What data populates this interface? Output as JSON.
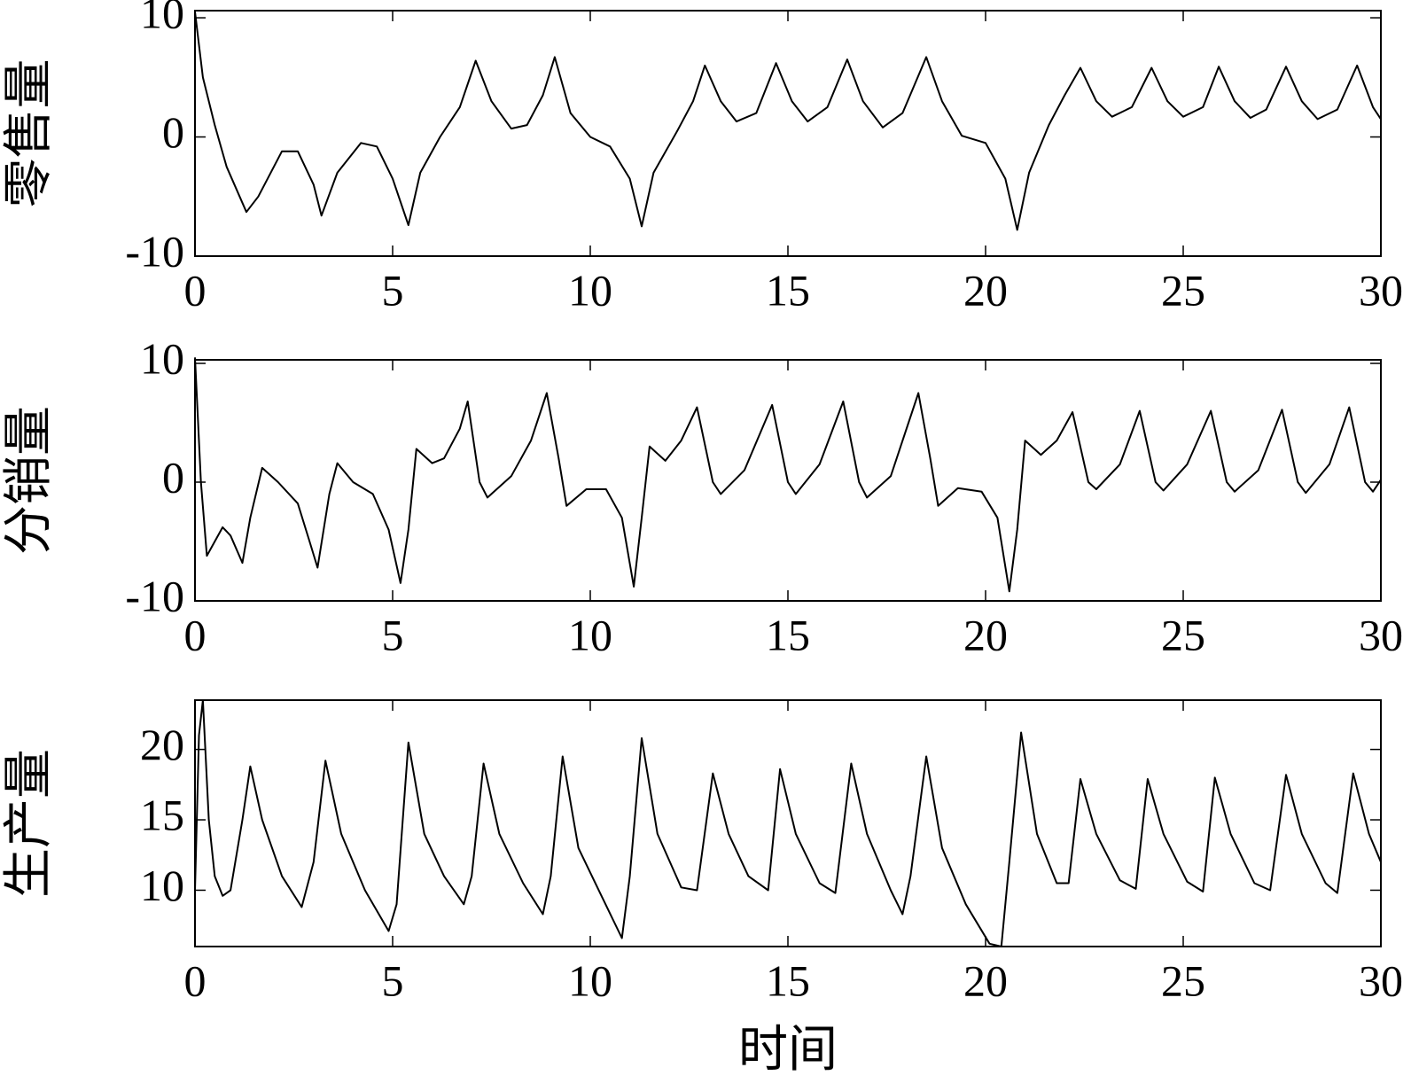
{
  "chart_data": [
    {
      "type": "line",
      "ylabel": "零售量",
      "color": "#000000",
      "xlim": [
        0,
        30
      ],
      "xticks": [
        0,
        5,
        10,
        15,
        20,
        25,
        30
      ],
      "ylim": [
        -10,
        10.6
      ],
      "yticks": [
        -10,
        0,
        10
      ],
      "x": [
        0,
        0.2,
        0.5,
        0.8,
        1.3,
        1.6,
        2.2,
        2.6,
        3.0,
        3.2,
        3.6,
        4.2,
        4.6,
        5.0,
        5.4,
        5.7,
        6.2,
        6.7,
        7.1,
        7.5,
        8.0,
        8.4,
        8.8,
        9.1,
        9.5,
        10.0,
        10.5,
        11.0,
        11.3,
        11.6,
        12.2,
        12.6,
        12.9,
        13.3,
        13.7,
        14.2,
        14.7,
        15.1,
        15.5,
        16.0,
        16.5,
        16.9,
        17.4,
        17.9,
        18.5,
        18.9,
        19.4,
        20.0,
        20.5,
        20.8,
        21.1,
        21.6,
        22.0,
        22.4,
        22.8,
        23.2,
        23.7,
        24.2,
        24.6,
        25.0,
        25.5,
        25.9,
        26.3,
        26.7,
        27.1,
        27.6,
        28.0,
        28.4,
        28.9,
        29.4,
        29.8,
        30
      ],
      "values": [
        10.5,
        5,
        1,
        -2.5,
        -6.3,
        -5,
        -1.2,
        -1.2,
        -4,
        -6.6,
        -3,
        -0.5,
        -0.8,
        -3.5,
        -7.4,
        -3,
        0,
        2.5,
        6.4,
        3,
        0.7,
        1,
        3.5,
        6.7,
        2,
        0,
        -0.8,
        -3.5,
        -7.5,
        -3,
        0.5,
        3,
        6,
        3,
        1.3,
        2,
        6.2,
        3,
        1.3,
        2.5,
        6.5,
        3,
        0.8,
        2,
        6.7,
        3,
        0.1,
        -0.5,
        -3.5,
        -7.8,
        -3,
        1,
        3.5,
        5.8,
        3,
        1.7,
        2.5,
        5.8,
        3,
        1.7,
        2.5,
        5.9,
        3,
        1.6,
        2.3,
        5.9,
        3,
        1.5,
        2.3,
        6,
        2.5,
        1.5
      ]
    },
    {
      "type": "line",
      "ylabel": "分销量",
      "color": "#000000",
      "xlim": [
        0,
        30
      ],
      "xticks": [
        0,
        5,
        10,
        15,
        20,
        25,
        30
      ],
      "ylim": [
        -10,
        10.3
      ],
      "yticks": [
        -10,
        0,
        10
      ],
      "x": [
        0,
        0.15,
        0.3,
        0.7,
        0.9,
        1.2,
        1.4,
        1.7,
        2.1,
        2.6,
        2.9,
        3.1,
        3.4,
        3.6,
        4.0,
        4.5,
        4.9,
        5.2,
        5.4,
        5.6,
        6.0,
        6.3,
        6.7,
        6.9,
        7.2,
        7.4,
        8.0,
        8.5,
        8.9,
        9.2,
        9.4,
        9.9,
        10.4,
        10.8,
        11.1,
        11.3,
        11.5,
        11.9,
        12.3,
        12.7,
        13.1,
        13.3,
        13.9,
        14.6,
        15.0,
        15.2,
        15.8,
        16.4,
        16.8,
        17.0,
        17.6,
        18.3,
        18.6,
        18.8,
        19.3,
        19.9,
        20.3,
        20.6,
        20.8,
        21.0,
        21.4,
        21.8,
        22.2,
        22.6,
        22.8,
        23.4,
        23.9,
        24.3,
        24.5,
        25.1,
        25.7,
        26.1,
        26.3,
        26.9,
        27.5,
        27.9,
        28.1,
        28.7,
        29.2,
        29.6,
        29.8,
        30
      ],
      "values": [
        10.5,
        0,
        -6.2,
        -3.8,
        -4.5,
        -6.8,
        -3,
        1.2,
        0,
        -1.8,
        -5,
        -7.2,
        -1,
        1.6,
        0,
        -1,
        -4,
        -8.5,
        -4,
        2.8,
        1.6,
        2,
        4.5,
        6.8,
        0,
        -1.3,
        0.5,
        3.5,
        7.5,
        2,
        -2,
        -0.6,
        -0.6,
        -3,
        -8.8,
        -3,
        3,
        1.8,
        3.5,
        6.3,
        0,
        -1,
        1,
        6.5,
        0,
        -1,
        1.5,
        6.8,
        0,
        -1.3,
        0.5,
        7.5,
        2,
        -2,
        -0.5,
        -0.8,
        -3,
        -9.2,
        -4,
        3.5,
        2.3,
        3.5,
        5.9,
        0,
        -0.6,
        1.5,
        6,
        0,
        -0.7,
        1.5,
        6,
        0,
        -0.8,
        1,
        6.1,
        0,
        -0.9,
        1.5,
        6.3,
        0,
        -0.8,
        0.2
      ]
    },
    {
      "type": "line",
      "ylabel": "生产量",
      "xlabel": "时间",
      "color": "#000000",
      "xlim": [
        0,
        30
      ],
      "xticks": [
        0,
        5,
        10,
        15,
        20,
        25,
        30
      ],
      "ylim": [
        6,
        23.5
      ],
      "yticks": [
        10,
        15,
        20
      ],
      "x": [
        0,
        0.1,
        0.2,
        0.35,
        0.5,
        0.7,
        0.9,
        1.2,
        1.4,
        1.7,
        2.2,
        2.7,
        3.0,
        3.3,
        3.7,
        4.3,
        4.9,
        5.1,
        5.4,
        5.8,
        6.3,
        6.8,
        7.0,
        7.3,
        7.7,
        8.3,
        8.8,
        9.0,
        9.3,
        9.7,
        10.3,
        10.8,
        11.0,
        11.3,
        11.7,
        12.3,
        12.7,
        13.1,
        13.5,
        14.0,
        14.5,
        14.8,
        15.2,
        15.8,
        16.2,
        16.6,
        17.0,
        17.6,
        17.9,
        18.1,
        18.5,
        18.9,
        19.5,
        20.1,
        20.4,
        20.6,
        20.9,
        21.3,
        21.8,
        22.1,
        22.4,
        22.8,
        23.4,
        23.8,
        24.1,
        24.5,
        25.1,
        25.5,
        25.8,
        26.2,
        26.8,
        27.2,
        27.6,
        28.0,
        28.6,
        28.9,
        29.3,
        29.7,
        30
      ],
      "values": [
        10,
        21,
        23.5,
        15,
        11,
        9.6,
        10,
        15,
        18.8,
        15,
        11,
        8.8,
        12,
        19.2,
        14,
        10,
        7.1,
        9,
        20.5,
        14,
        11,
        9,
        11,
        19,
        14,
        10.5,
        8.3,
        11,
        19.5,
        13,
        9.5,
        6.6,
        11,
        20.8,
        14,
        10.2,
        10,
        18.3,
        14,
        11,
        10,
        18.6,
        14,
        10.5,
        9.8,
        19,
        14,
        10,
        8.3,
        11,
        19.5,
        13,
        9,
        6.2,
        6,
        12,
        21.2,
        14,
        10.5,
        10.5,
        17.9,
        14,
        10.7,
        10.1,
        17.9,
        14,
        10.6,
        9.9,
        18,
        14,
        10.5,
        10,
        18.2,
        14,
        10.5,
        9.8,
        18.3,
        14,
        12
      ]
    }
  ]
}
